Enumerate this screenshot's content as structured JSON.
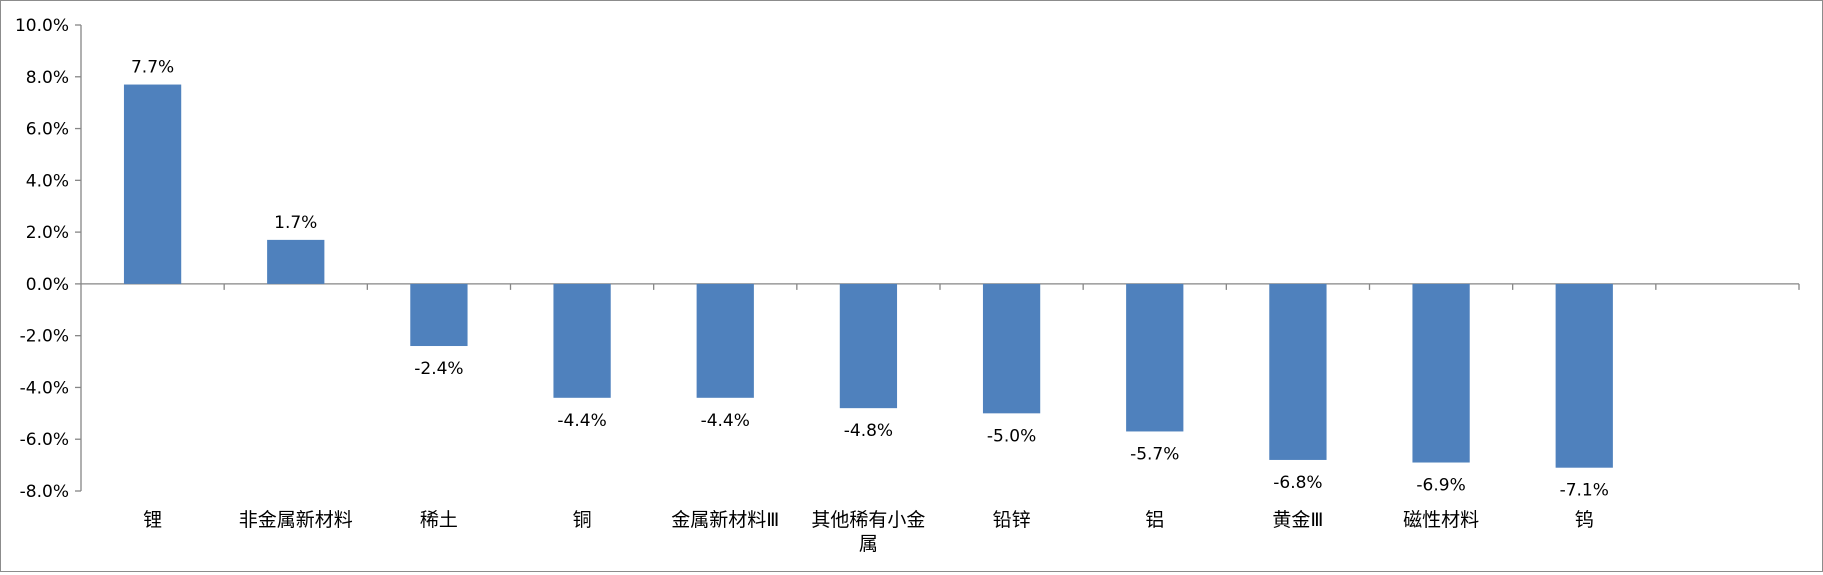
{
  "chart_data": {
    "type": "bar",
    "categories": [
      "锂",
      "非金属新材料",
      "稀土",
      "铜",
      "金属新材料Ⅲ",
      "其他稀有小金属",
      "铅锌",
      "铝",
      "黄金Ⅲ",
      "磁性材料",
      "钨"
    ],
    "values": [
      7.7,
      1.7,
      -2.4,
      -4.4,
      -4.4,
      -4.8,
      -5.0,
      -5.7,
      -6.8,
      -6.9,
      -7.1
    ],
    "value_labels": [
      "7.7%",
      "1.7%",
      "-2.4%",
      "-4.4%",
      "-4.4%",
      "-4.8%",
      "-5.0%",
      "-5.7%",
      "-6.8%",
      "-6.9%",
      "-7.1%"
    ],
    "y_ticks": [
      "10.0%",
      "8.0%",
      "6.0%",
      "4.0%",
      "2.0%",
      "0.0%",
      "-2.0%",
      "-4.0%",
      "-6.0%",
      "-8.0%"
    ],
    "ylim": [
      -8,
      10
    ],
    "title": "",
    "xlabel": "",
    "ylabel": "",
    "grid": false,
    "legend": "none",
    "bar_color": "#4F81BD"
  }
}
